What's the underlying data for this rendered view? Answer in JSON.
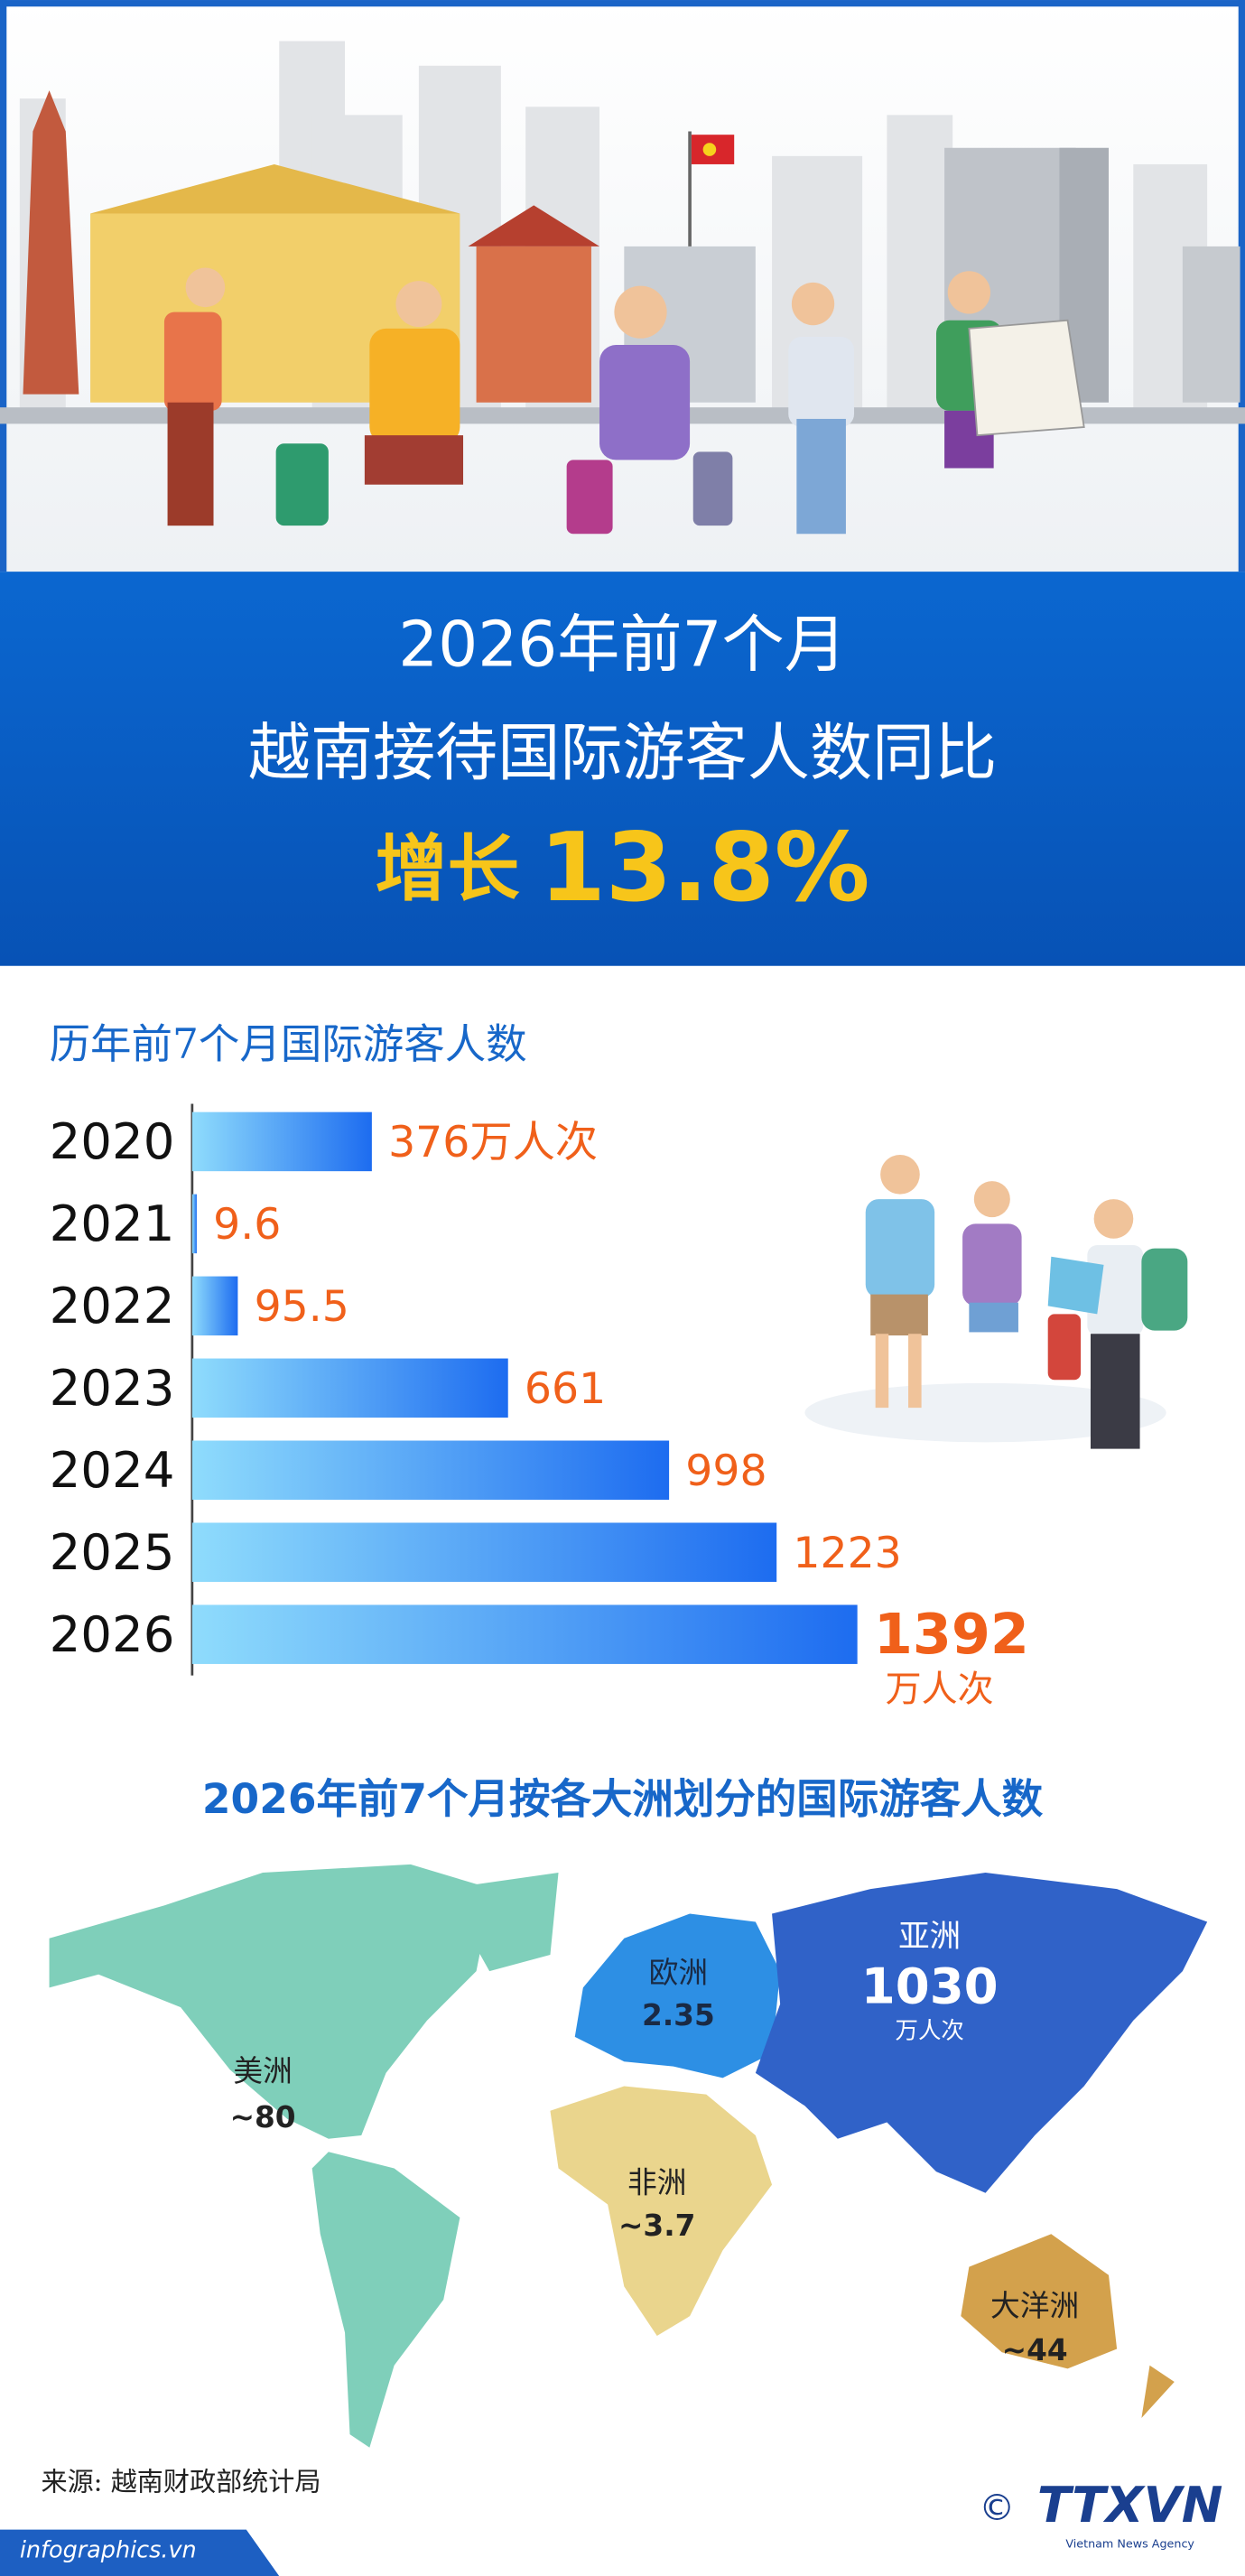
{
  "header": {
    "line1": "2026年前7个月",
    "line2": "越南接待国际游客人数同比",
    "growth_word": "增长",
    "growth_value": "13.8%"
  },
  "chart_data": {
    "type": "bar",
    "orientation": "horizontal",
    "title": "历年前7个月国际游客人数",
    "categories": [
      "2020",
      "2021",
      "2022",
      "2023",
      "2024",
      "2025",
      "2026"
    ],
    "values": [
      376,
      9.6,
      95.5,
      661,
      998,
      1223,
      1392
    ],
    "value_labels": [
      "376万人次",
      "9.6",
      "95.5",
      "661",
      "998",
      "1223",
      "1392"
    ],
    "unit": "万人次",
    "colors": [
      "#8fdcfc",
      "#1d6cf0"
    ],
    "label_color": "#f0601a"
  },
  "map": {
    "title": "2026年前7个月按各大洲划分的国际游客人数",
    "regions": [
      {
        "name": "美洲",
        "value": "~80",
        "color": "#7fcfba"
      },
      {
        "name": "欧洲",
        "value": "2.35",
        "color": "#2d8fe4"
      },
      {
        "name": "亚洲",
        "value": "1030",
        "unit": "万人次",
        "color": "#3062c8"
      },
      {
        "name": "非洲",
        "value": "~3.7",
        "color": "#ead58d"
      },
      {
        "name": "大洋洲",
        "value": "~44",
        "color": "#d3a14c"
      }
    ]
  },
  "footer": {
    "source": "来源: 越南财政部统计局",
    "site": "infographics.vn",
    "copyright": "©",
    "logo": "TTXVN",
    "agency": "Vietnam News Agency"
  }
}
